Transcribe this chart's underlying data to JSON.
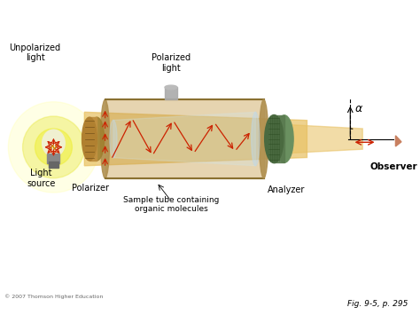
{
  "title": "",
  "background_color": "#ffffff",
  "fig_width": 4.74,
  "fig_height": 3.55,
  "dpi": 100,
  "labels": {
    "unpolarized_light": "Unpolarized\nlight",
    "light_source": "Light\nsource",
    "polarizer": "Polarizer",
    "polarized_light": "Polarized\nlight",
    "sample_tube": "Sample tube containing\norganic molecules",
    "analyzer": "Analyzer",
    "observer": "Observer",
    "alpha": "α",
    "copyright": "© 2007 Thomson Higher Education",
    "fig_ref": "Fig. 9-5, p. 295"
  },
  "colors": {
    "background": "#ffffff",
    "light_beam_fill": "#e8c060",
    "bulb_glow": "#e8e840",
    "bulb_glow2": "#ffffaa",
    "polarizer_disk": "#a08030",
    "tube_border": "#8a7030",
    "red_arrows": "#cc2200",
    "text_color": "#000000"
  }
}
